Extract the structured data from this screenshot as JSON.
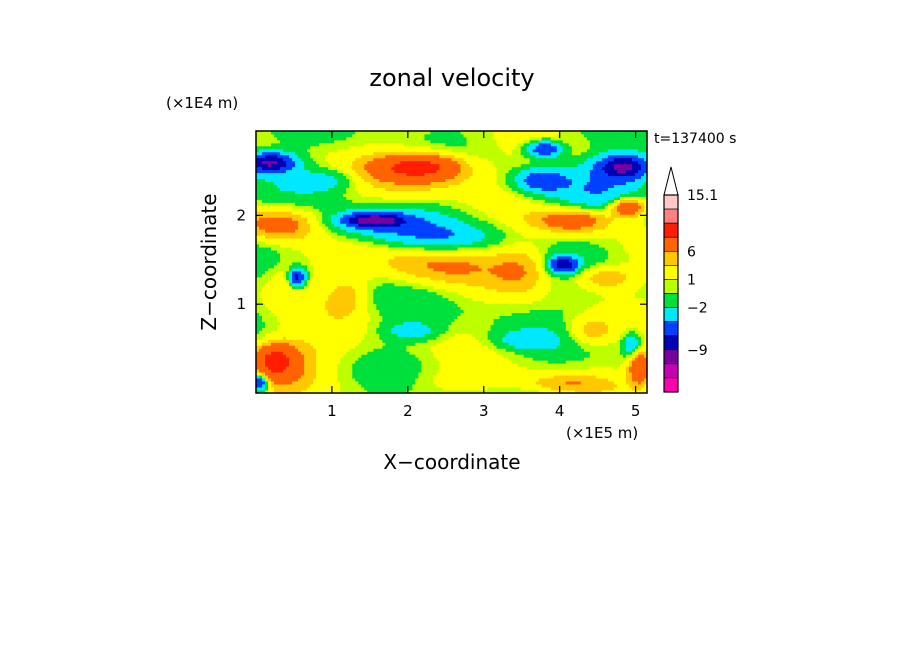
{
  "chart_data": {
    "type": "heatmap",
    "title": "zonal velocity",
    "xlabel": "X−coordinate",
    "ylabel": "Z−coordinate",
    "x_unit": "(×1E5 m)",
    "y_unit": "(×1E4 m)",
    "time_label": "t=137400 s",
    "xlim": [
      0,
      5.15
    ],
    "ylim": [
      0,
      2.95
    ],
    "x_ticks": [
      "1",
      "2",
      "3",
      "4",
      "5"
    ],
    "y_ticks": [
      "1",
      "2"
    ],
    "colorbar": {
      "tick_labels": [
        "15.1",
        "6",
        "1",
        "−2",
        "−9"
      ],
      "extend": "max"
    },
    "palette": [
      "#ff00b0",
      "#c800b4",
      "#7800a0",
      "#0000b4",
      "#0040ff",
      "#00e8ff",
      "#00e03c",
      "#beff00",
      "#ffff00",
      "#ffc800",
      "#ff6400",
      "#ff1e00",
      "#ff8080",
      "#ffc8c8"
    ],
    "field": {
      "description_free": true,
      "blobs": [
        {
          "x": 2.15,
          "y": 2.55,
          "rx": 0.55,
          "ry": 0.14,
          "v": 5.0
        },
        {
          "x": 2.2,
          "y": 2.5,
          "rx": 0.9,
          "ry": 0.28,
          "v": 2.5
        },
        {
          "x": 0.18,
          "y": 2.6,
          "rx": 0.35,
          "ry": 0.12,
          "v": -7.0
        },
        {
          "x": 0.9,
          "y": 2.4,
          "rx": 0.5,
          "ry": 0.15,
          "v": -2.0
        },
        {
          "x": 1.55,
          "y": 1.95,
          "rx": 0.42,
          "ry": 0.09,
          "v": -6.5
        },
        {
          "x": 1.6,
          "y": 1.9,
          "rx": 0.9,
          "ry": 0.2,
          "v": -2.2
        },
        {
          "x": 2.5,
          "y": 1.75,
          "rx": 0.8,
          "ry": 0.18,
          "v": -2.0
        },
        {
          "x": 4.85,
          "y": 2.55,
          "rx": 0.38,
          "ry": 0.15,
          "v": -7.0
        },
        {
          "x": 3.75,
          "y": 2.4,
          "rx": 0.35,
          "ry": 0.14,
          "v": -4.0
        },
        {
          "x": 4.5,
          "y": 2.3,
          "rx": 0.7,
          "ry": 0.3,
          "v": -1.8
        },
        {
          "x": 4.9,
          "y": 2.1,
          "rx": 0.25,
          "ry": 0.12,
          "v": 5.0
        },
        {
          "x": 4.2,
          "y": 1.95,
          "rx": 0.55,
          "ry": 0.15,
          "v": 4.0
        },
        {
          "x": 0.3,
          "y": 1.9,
          "rx": 0.55,
          "ry": 0.2,
          "v": 3.5
        },
        {
          "x": 2.4,
          "y": 1.45,
          "rx": 0.9,
          "ry": 0.25,
          "v": 2.5
        },
        {
          "x": 3.5,
          "y": 1.4,
          "rx": 0.4,
          "ry": 0.3,
          "v": 2.0
        },
        {
          "x": 4.05,
          "y": 1.45,
          "rx": 0.2,
          "ry": 0.1,
          "v": -6.0
        },
        {
          "x": 4.6,
          "y": 1.3,
          "rx": 0.45,
          "ry": 0.15,
          "v": 2.5
        },
        {
          "x": 0.55,
          "y": 1.3,
          "rx": 0.12,
          "ry": 0.12,
          "v": -6.0
        },
        {
          "x": 0.45,
          "y": 1.25,
          "rx": 0.4,
          "ry": 0.3,
          "v": 1.5
        },
        {
          "x": 1.2,
          "y": 1.1,
          "rx": 0.3,
          "ry": 0.25,
          "v": 1.8
        },
        {
          "x": 0.8,
          "y": 0.5,
          "rx": 0.85,
          "ry": 0.3,
          "v": 1.0
        },
        {
          "x": 0.25,
          "y": 0.38,
          "rx": 0.25,
          "ry": 0.18,
          "v": 4.5
        },
        {
          "x": 0.3,
          "y": 0.3,
          "rx": 0.45,
          "ry": 0.3,
          "v": 2.5
        },
        {
          "x": 0.05,
          "y": 0.12,
          "rx": 0.12,
          "ry": 0.1,
          "v": -6.0
        },
        {
          "x": 2.05,
          "y": 0.7,
          "rx": 0.4,
          "ry": 0.12,
          "v": -2.0
        },
        {
          "x": 3.55,
          "y": 0.6,
          "rx": 0.45,
          "ry": 0.12,
          "v": -2.0
        },
        {
          "x": 4.4,
          "y": 0.7,
          "rx": 0.35,
          "ry": 0.18,
          "v": 2.0
        },
        {
          "x": 3.0,
          "y": 0.15,
          "rx": 1.0,
          "ry": 0.15,
          "v": 1.0
        },
        {
          "x": 4.1,
          "y": 0.1,
          "rx": 0.6,
          "ry": 0.12,
          "v": 2.0
        },
        {
          "x": 5.05,
          "y": 0.3,
          "rx": 0.15,
          "ry": 0.2,
          "v": 5.0
        },
        {
          "x": 4.95,
          "y": 0.55,
          "rx": 0.12,
          "ry": 0.15,
          "v": -3.0
        },
        {
          "x": 3.8,
          "y": 2.75,
          "rx": 0.25,
          "ry": 0.1,
          "v": -5.0
        }
      ]
    }
  }
}
